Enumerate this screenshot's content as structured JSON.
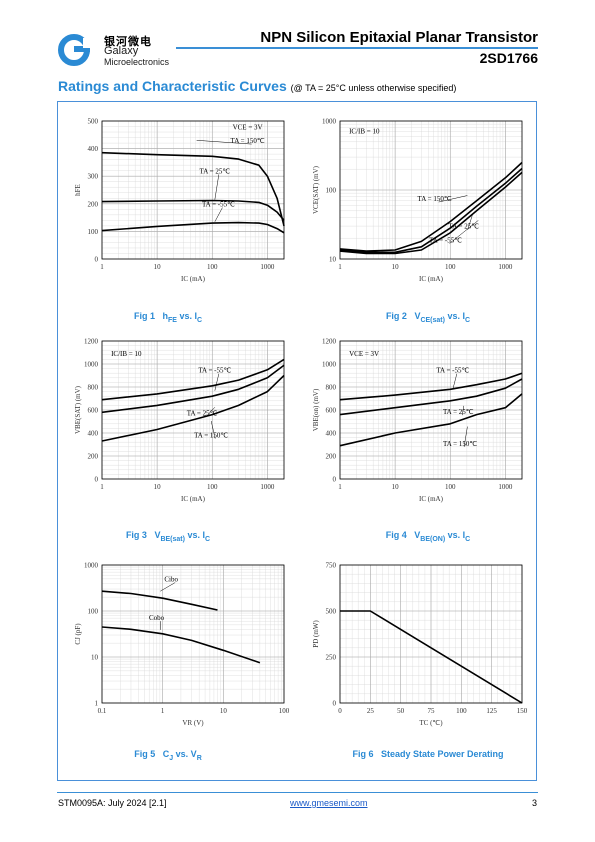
{
  "header": {
    "company_cn": "银河微电",
    "company_en_1": "Galaxy",
    "company_en_2": "Microelectronics",
    "title": "NPN Silicon Epitaxial Planar Transistor",
    "part_number": "2SD1766"
  },
  "section": {
    "title": "Ratings and Characteristic Curves",
    "condition": "(@ TA = 25°C unless otherwise specified)"
  },
  "colors": {
    "accent": "#2a8ad4",
    "curve": "#000000",
    "grid": "#d8d8d8"
  },
  "footer": {
    "doc_id": "STM0095A: July 2024 [2.1]",
    "url": "www.gmesemi.com",
    "page": "3"
  },
  "chart_data": [
    {
      "id": "fig1",
      "type": "line",
      "caption": "Fig 1 hFE vs. IC",
      "xlabel": "IC (mA)",
      "ylabel": "hFE",
      "xscale": "log",
      "yscale": "linear",
      "xlim": [
        1,
        2000
      ],
      "ylim": [
        0,
        500
      ],
      "xticks": [
        1,
        10,
        100,
        1000
      ],
      "yticks": [
        0,
        100,
        200,
        300,
        400,
        500
      ],
      "annotations": [
        "VCE = 3V"
      ],
      "series": [
        {
          "name": "TA = 150℃",
          "x": [
            1,
            10,
            100,
            300,
            700,
            1000,
            1500,
            2000
          ],
          "y": [
            385,
            378,
            372,
            362,
            340,
            300,
            220,
            120
          ]
        },
        {
          "name": "TA = 25℃",
          "x": [
            1,
            10,
            100,
            300,
            700,
            1000,
            1500,
            2000
          ],
          "y": [
            208,
            210,
            212,
            210,
            205,
            195,
            170,
            140
          ]
        },
        {
          "name": "TA = -55℃",
          "x": [
            1,
            10,
            100,
            300,
            700,
            1000,
            1500,
            2000
          ],
          "y": [
            103,
            118,
            130,
            132,
            130,
            125,
            110,
            95
          ]
        }
      ]
    },
    {
      "id": "fig2",
      "type": "line",
      "caption": "Fig 2 VCE(sat) vs. IC",
      "xlabel": "IC (mA)",
      "ylabel": "VCE(SAT) (mV)",
      "xscale": "log",
      "yscale": "log",
      "xlim": [
        1,
        2000
      ],
      "ylim": [
        10,
        1000
      ],
      "xticks": [
        1,
        10,
        100,
        1000
      ],
      "yticks": [
        10,
        100,
        1000
      ],
      "annotations": [
        "IC/IB = 10"
      ],
      "series": [
        {
          "name": "TA = 150℃",
          "x": [
            1,
            3,
            10,
            30,
            100,
            300,
            1000,
            2000
          ],
          "y": [
            14,
            13,
            13.5,
            18,
            35,
            70,
            150,
            250
          ]
        },
        {
          "name": "TA = 25℃",
          "x": [
            1,
            3,
            10,
            30,
            100,
            300,
            1000,
            2000
          ],
          "y": [
            13.5,
            12.5,
            12.5,
            15,
            28,
            58,
            125,
            205
          ]
        },
        {
          "name": "TA = -55℃",
          "x": [
            1,
            3,
            10,
            30,
            100,
            300,
            1000,
            2000
          ],
          "y": [
            13,
            12,
            12,
            13.5,
            24,
            50,
            110,
            180
          ]
        }
      ]
    },
    {
      "id": "fig3",
      "type": "line",
      "caption": "Fig 3 VBE(sat) vs. IC",
      "xlabel": "IC (mA)",
      "ylabel": "VBE(SAT) (mV)",
      "xscale": "log",
      "yscale": "linear",
      "xlim": [
        1,
        2000
      ],
      "ylim": [
        0,
        1200
      ],
      "xticks": [
        1,
        10,
        100,
        1000
      ],
      "yticks": [
        0,
        200,
        400,
        600,
        800,
        1000,
        1200
      ],
      "annotations": [
        "IC/IB = 10"
      ],
      "series": [
        {
          "name": "TA = -55℃",
          "x": [
            1,
            10,
            100,
            300,
            1000,
            2000
          ],
          "y": [
            690,
            740,
            810,
            860,
            950,
            1040
          ]
        },
        {
          "name": "TA = 25℃",
          "x": [
            1,
            10,
            100,
            300,
            1000,
            2000
          ],
          "y": [
            580,
            640,
            720,
            780,
            880,
            990
          ]
        },
        {
          "name": "TA = 150℃",
          "x": [
            1,
            10,
            100,
            300,
            1000,
            2000
          ],
          "y": [
            330,
            430,
            560,
            640,
            760,
            900
          ]
        }
      ]
    },
    {
      "id": "fig4",
      "type": "line",
      "caption": "Fig 4 VBE(ON) vs. IC",
      "xlabel": "IC (mA)",
      "ylabel": "VBE(on) (mV)",
      "xscale": "log",
      "yscale": "linear",
      "xlim": [
        1,
        2000
      ],
      "ylim": [
        0,
        1200
      ],
      "xticks": [
        1,
        10,
        100,
        1000
      ],
      "yticks": [
        0,
        200,
        400,
        600,
        800,
        1000,
        1200
      ],
      "annotations": [
        "VCE = 3V"
      ],
      "series": [
        {
          "name": "TA = -55℃",
          "x": [
            1,
            10,
            100,
            300,
            1000,
            2000
          ],
          "y": [
            690,
            730,
            780,
            820,
            870,
            920
          ]
        },
        {
          "name": "TA = 25℃",
          "x": [
            1,
            10,
            100,
            300,
            1000,
            2000
          ],
          "y": [
            560,
            620,
            680,
            720,
            790,
            870
          ]
        },
        {
          "name": "TA = 150℃",
          "x": [
            1,
            10,
            100,
            300,
            1000,
            2000
          ],
          "y": [
            290,
            400,
            480,
            560,
            620,
            740
          ]
        }
      ]
    },
    {
      "id": "fig5",
      "type": "line",
      "caption": "Fig 5 CJ vs. VR",
      "xlabel": "VR (V)",
      "ylabel": "CJ (pF)",
      "xscale": "log",
      "yscale": "log",
      "xlim": [
        0.1,
        100
      ],
      "ylim": [
        1,
        1000
      ],
      "xticks": [
        0.1,
        1,
        10,
        100
      ],
      "yticks": [
        1,
        10,
        100,
        1000
      ],
      "series": [
        {
          "name": "Cibo",
          "x": [
            0.1,
            0.3,
            1,
            3,
            8
          ],
          "y": [
            270,
            240,
            190,
            140,
            105
          ]
        },
        {
          "name": "Cobo",
          "x": [
            0.1,
            0.3,
            1,
            3,
            10,
            40
          ],
          "y": [
            45,
            40,
            32,
            23,
            14,
            7.5
          ]
        }
      ]
    },
    {
      "id": "fig6",
      "type": "line",
      "caption": "Fig 6 Steady State Power Derating",
      "xlabel": "TC (℃)",
      "ylabel": "PD (mW)",
      "xscale": "linear",
      "yscale": "linear",
      "xlim": [
        0,
        150
      ],
      "ylim": [
        0,
        750
      ],
      "xticks": [
        0,
        25,
        50,
        75,
        100,
        125,
        150
      ],
      "yticks": [
        0,
        250,
        500,
        750
      ],
      "series": [
        {
          "name": "",
          "x": [
            0,
            25,
            150
          ],
          "y": [
            500,
            500,
            0
          ]
        }
      ]
    }
  ]
}
